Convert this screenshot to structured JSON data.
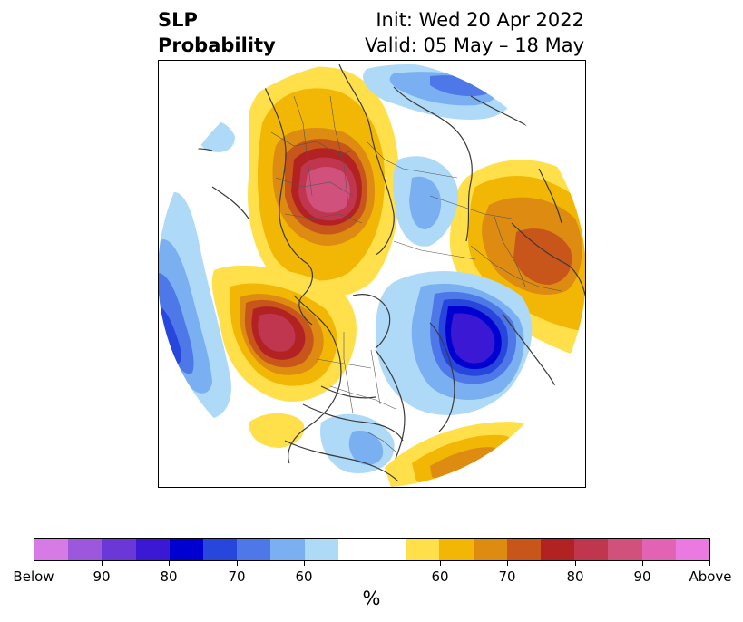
{
  "title": {
    "left_line1": "SLP",
    "left_line2": "Probability",
    "right_line1": "Init: Wed 20 Apr 2022",
    "right_line2": "Valid: 05 May – 18 May"
  },
  "colorbar": {
    "unit": "%",
    "colors": [
      "#d67be6",
      "#9c57dd",
      "#6b37d6",
      "#3a18d4",
      "#0000d0",
      "#2746dc",
      "#4e78e8",
      "#7ab0f2",
      "#aedaf7",
      "#ffffff",
      "#ffffff",
      "#ffe04a",
      "#f2b705",
      "#de8b12",
      "#c8551a",
      "#b22222",
      "#c0364e",
      "#cf517c",
      "#e263b4",
      "#ea7ae2"
    ],
    "tick_labels": [
      {
        "text": "Below",
        "frac": 0.0
      },
      {
        "text": "90",
        "frac": 0.1
      },
      {
        "text": "80",
        "frac": 0.2
      },
      {
        "text": "70",
        "frac": 0.3
      },
      {
        "text": "60",
        "frac": 0.4
      },
      {
        "text": "60",
        "frac": 0.6
      },
      {
        "text": "70",
        "frac": 0.7
      },
      {
        "text": "80",
        "frac": 0.8
      },
      {
        "text": "90",
        "frac": 0.9
      },
      {
        "text": "Above",
        "frac": 1.0
      }
    ]
  },
  "map": {
    "projection": "north-polar-stereographic",
    "anomaly_features": [
      {
        "name": "above-normal-europe",
        "sign": "above",
        "peak_percent": 90
      },
      {
        "name": "above-normal-north-pacific",
        "sign": "above",
        "peak_percent": 80
      },
      {
        "name": "above-normal-siberia",
        "sign": "above",
        "peak_percent": 70
      },
      {
        "name": "above-normal-atlantic",
        "sign": "above",
        "peak_percent": 70
      },
      {
        "name": "below-normal-baffin",
        "sign": "below",
        "peak_percent": 80
      },
      {
        "name": "below-normal-atlantic-west",
        "sign": "below",
        "peak_percent": 80
      },
      {
        "name": "below-normal-arctic-russia",
        "sign": "below",
        "peak_percent": 70
      }
    ]
  }
}
